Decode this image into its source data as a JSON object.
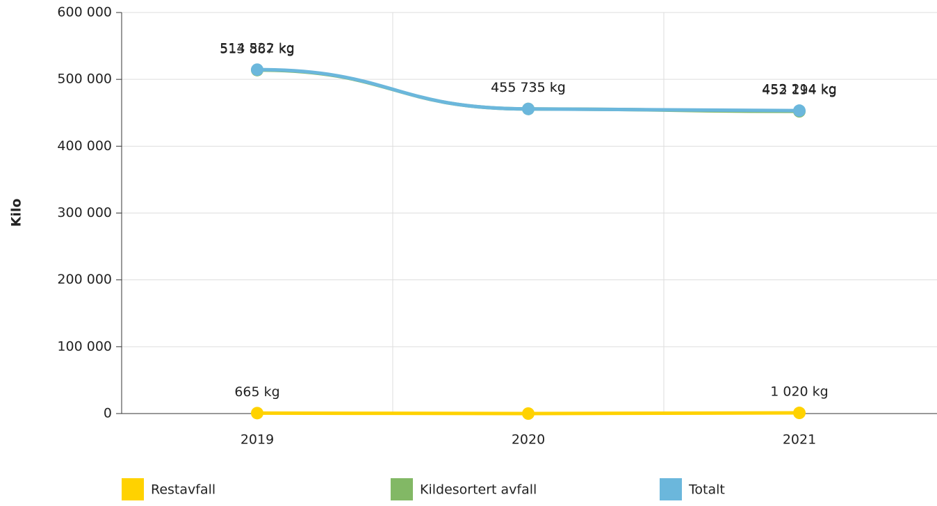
{
  "chart_data": {
    "type": "line",
    "y_label": "Kilo",
    "categories": [
      "2019",
      "2020",
      "2021"
    ],
    "series": [
      {
        "name": "Restavfall",
        "color": "#ffd200",
        "values": [
          665,
          0,
          1020
        ],
        "value_labels": [
          "665 kg",
          null,
          "1 020 kg"
        ]
      },
      {
        "name": "Kildesortert avfall",
        "color": "#82b865",
        "values": [
          513867,
          455735,
          452194
        ],
        "value_labels": [
          "513 867 kg",
          "455 735 kg",
          "452 194 kg"
        ]
      },
      {
        "name": "Totalt",
        "color": "#6bb7dc",
        "values": [
          514532,
          455735,
          453214
        ],
        "value_labels": [
          "514 532 kg",
          "455 735 kg",
          "453 214 kg"
        ]
      }
    ],
    "ylim": [
      0,
      600000
    ],
    "yticks": [
      0,
      {
        "value": 100000,
        "label": "100 000"
      },
      {
        "value": 200000,
        "label": "200 000"
      },
      {
        "value": 300000,
        "label": "300 000"
      },
      {
        "value": 400000,
        "label": "400 000"
      },
      {
        "value": 500000,
        "label": "500 000"
      },
      {
        "value": 600000,
        "label": "600 000"
      }
    ],
    "grid": true
  }
}
